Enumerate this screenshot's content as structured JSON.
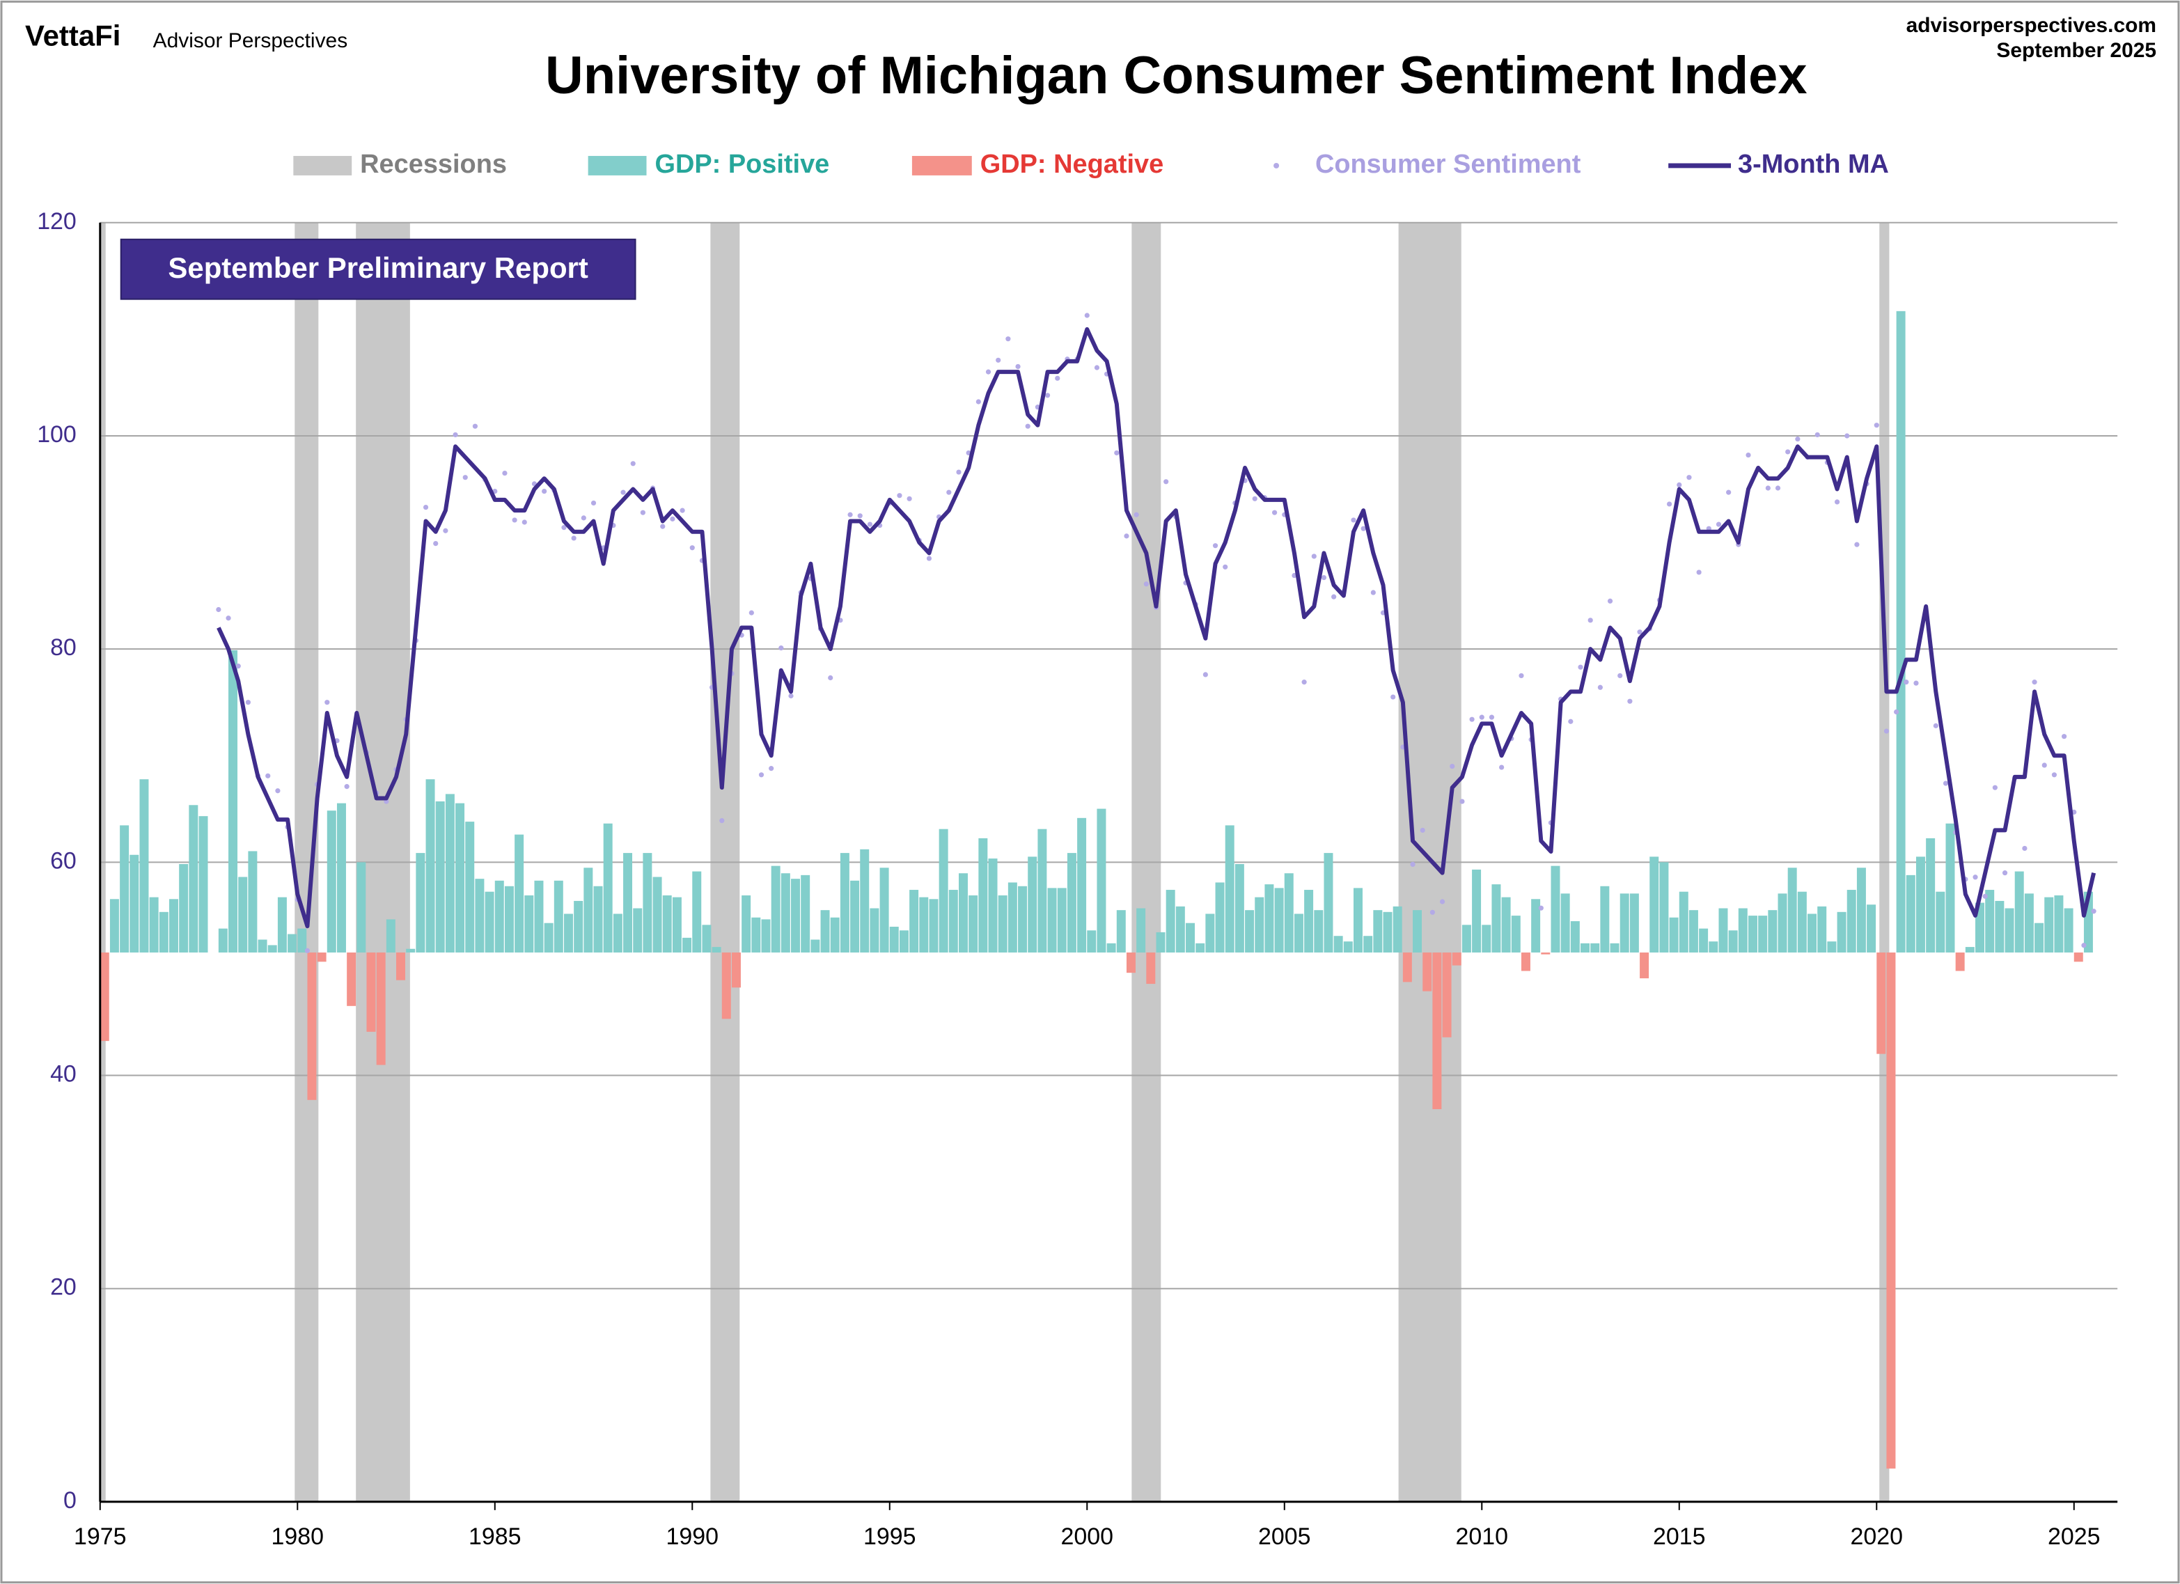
{
  "header": {
    "logo": "VettaFi",
    "brand": "Advisor Perspectives",
    "site": "advisorperspectives.com",
    "date": "September 2025"
  },
  "chart_data": {
    "type": "combo",
    "title": "University of Michigan Consumer Sentiment Index",
    "annotation": "September Preliminary Report",
    "xlim": [
      1975,
      2026.1
    ],
    "xticks": [
      1975,
      1980,
      1985,
      1990,
      1995,
      2000,
      2005,
      2010,
      2015,
      2020,
      2025
    ],
    "ylim": [
      0,
      120
    ],
    "yticks": [
      0,
      20,
      40,
      60,
      80,
      100,
      120
    ],
    "y2lim": [
      -29.8,
      39.6
    ],
    "grid": true,
    "recessions": {
      "name": "Recessions",
      "color": "#c8c8c8",
      "label_color": "#7f7f7f",
      "periods": [
        [
          1975,
          1975.14
        ],
        [
          1979.93,
          1980.53
        ],
        [
          1981.48,
          1982.85
        ],
        [
          1990.46,
          1991.2
        ],
        [
          2001.13,
          2001.87
        ],
        [
          2007.89,
          2009.48
        ],
        [
          2020.07,
          2020.32
        ]
      ]
    },
    "gdp": {
      "name_positive": "GDP: Positive",
      "color_positive": "#82cecb",
      "label_color_positive": "#26a69a",
      "name_negative": "GDP: Negative",
      "color_negative": "#f4928a",
      "label_color_negative": "#e53935",
      "x": [
        1975,
        1975.25,
        1975.5,
        1975.75,
        1976,
        1976.25,
        1976.5,
        1976.75,
        1977,
        1977.25,
        1977.5,
        1977.75,
        1978,
        1978.25,
        1978.5,
        1978.75,
        1979,
        1979.25,
        1979.5,
        1979.75,
        1980,
        1980.25,
        1980.5,
        1980.75,
        1981,
        1981.25,
        1981.5,
        1981.75,
        1982,
        1982.25,
        1982.5,
        1982.75,
        1983,
        1983.25,
        1983.5,
        1983.75,
        1984,
        1984.25,
        1984.5,
        1984.75,
        1985,
        1985.25,
        1985.5,
        1985.75,
        1986,
        1986.25,
        1986.5,
        1986.75,
        1987,
        1987.25,
        1987.5,
        1987.75,
        1988,
        1988.25,
        1988.5,
        1988.75,
        1989,
        1989.25,
        1989.5,
        1989.75,
        1990,
        1990.25,
        1990.5,
        1990.75,
        1991,
        1991.25,
        1991.5,
        1991.75,
        1992,
        1992.25,
        1992.5,
        1992.75,
        1993,
        1993.25,
        1993.5,
        1993.75,
        1994,
        1994.25,
        1994.5,
        1994.75,
        1995,
        1995.25,
        1995.5,
        1995.75,
        1996,
        1996.25,
        1996.5,
        1996.75,
        1997,
        1997.25,
        1997.5,
        1997.75,
        1998,
        1998.25,
        1998.5,
        1998.75,
        1999,
        1999.25,
        1999.5,
        1999.75,
        2000,
        2000.25,
        2000.5,
        2000.75,
        2001,
        2001.25,
        2001.5,
        2001.75,
        2002,
        2002.25,
        2002.5,
        2002.75,
        2003,
        2003.25,
        2003.5,
        2003.75,
        2004,
        2004.25,
        2004.5,
        2004.75,
        2005,
        2005.25,
        2005.5,
        2005.75,
        2006,
        2006.25,
        2006.5,
        2006.75,
        2007,
        2007.25,
        2007.5,
        2007.75,
        2008,
        2008.25,
        2008.5,
        2008.75,
        2009,
        2009.25,
        2009.5,
        2009.75,
        2010,
        2010.25,
        2010.5,
        2010.75,
        2011,
        2011.25,
        2011.5,
        2011.75,
        2012,
        2012.25,
        2012.5,
        2012.75,
        2013,
        2013.25,
        2013.5,
        2013.75,
        2014,
        2014.25,
        2014.5,
        2014.75,
        2015,
        2015.25,
        2015.5,
        2015.75,
        2016,
        2016.25,
        2016.5,
        2016.75,
        2017,
        2017.25,
        2017.5,
        2017.75,
        2018,
        2018.25,
        2018.5,
        2018.75,
        2019,
        2019.25,
        2019.5,
        2019.75,
        2020,
        2020.25,
        2020.5,
        2020.75,
        2021,
        2021.25,
        2021.5,
        2021.75,
        2022,
        2022.25,
        2022.5,
        2022.75,
        2023,
        2023.25,
        2023.5,
        2023.75,
        2024,
        2024.25,
        2024.5,
        2024.75,
        2025,
        2025.25
      ],
      "values": [
        -4.8,
        2.9,
        6.9,
        5.3,
        9.4,
        3.0,
        2.2,
        2.9,
        4.8,
        8.0,
        7.4,
        0.0,
        1.3,
        16.4,
        4.1,
        5.5,
        0.7,
        0.4,
        3.0,
        1.0,
        1.3,
        -8.0,
        -0.5,
        7.7,
        8.1,
        -2.9,
        4.9,
        -4.3,
        -6.1,
        1.8,
        -1.5,
        0.2,
        5.4,
        9.4,
        8.2,
        8.6,
        8.1,
        7.1,
        4.0,
        3.3,
        3.9,
        3.6,
        6.4,
        3.1,
        3.9,
        1.6,
        3.9,
        2.1,
        2.8,
        4.6,
        3.6,
        7.0,
        2.1,
        5.4,
        2.4,
        5.4,
        4.1,
        3.1,
        3.0,
        0.8,
        4.4,
        1.5,
        0.3,
        -3.6,
        -1.9,
        3.1,
        1.9,
        1.8,
        4.7,
        4.3,
        4.0,
        4.2,
        0.7,
        2.3,
        1.9,
        5.4,
        3.9,
        5.6,
        2.4,
        4.6,
        1.4,
        1.2,
        3.4,
        3.0,
        2.9,
        6.7,
        3.4,
        4.3,
        3.1,
        6.2,
        5.1,
        3.1,
        3.8,
        3.6,
        5.2,
        6.7,
        3.5,
        3.5,
        5.4,
        7.3,
        1.2,
        7.8,
        0.5,
        2.3,
        -1.1,
        2.4,
        -1.7,
        1.1,
        3.4,
        2.5,
        1.6,
        0.5,
        2.1,
        3.8,
        6.9,
        4.8,
        2.3,
        3.0,
        3.7,
        3.5,
        4.3,
        2.1,
        3.4,
        2.3,
        5.4,
        0.9,
        0.6,
        3.5,
        0.9,
        2.3,
        2.2,
        2.5,
        -1.6,
        2.3,
        -2.1,
        -8.5,
        -4.6,
        -0.7,
        1.5,
        4.5,
        1.5,
        3.7,
        3.0,
        2.0,
        -1.0,
        2.9,
        -0.1,
        4.7,
        3.2,
        1.7,
        0.5,
        0.5,
        3.6,
        0.5,
        3.2,
        3.2,
        -1.4,
        5.2,
        4.9,
        1.9,
        3.3,
        2.3,
        1.3,
        0.6,
        2.4,
        1.2,
        2.4,
        2.0,
        2.0,
        2.3,
        3.2,
        4.6,
        3.3,
        2.1,
        2.5,
        0.6,
        2.2,
        3.4,
        4.6,
        2.6,
        -5.5,
        -28.0,
        34.8,
        4.2,
        5.2,
        6.2,
        3.3,
        7.0,
        -1.0,
        0.3,
        2.7,
        3.4,
        2.8,
        2.4,
        4.4,
        3.2,
        1.6,
        3.0,
        3.1,
        2.4,
        -0.5,
        3.3
      ]
    },
    "x": [
      1978,
      1978.25,
      1978.5,
      1978.75,
      1979,
      1979.25,
      1979.5,
      1979.75,
      1980,
      1980.25,
      1980.5,
      1980.75,
      1981,
      1981.25,
      1981.5,
      1981.75,
      1982,
      1982.25,
      1982.5,
      1982.75,
      1983,
      1983.25,
      1983.5,
      1983.75,
      1984,
      1984.25,
      1984.5,
      1984.75,
      1985,
      1985.25,
      1985.5,
      1985.75,
      1986,
      1986.25,
      1986.5,
      1986.75,
      1987,
      1987.25,
      1987.5,
      1987.75,
      1988,
      1988.25,
      1988.5,
      1988.75,
      1989,
      1989.25,
      1989.5,
      1989.75,
      1990,
      1990.25,
      1990.5,
      1990.75,
      1991,
      1991.25,
      1991.5,
      1991.75,
      1992,
      1992.25,
      1992.5,
      1992.75,
      1993,
      1993.25,
      1993.5,
      1993.75,
      1994,
      1994.25,
      1994.5,
      1994.75,
      1995,
      1995.25,
      1995.5,
      1995.75,
      1996,
      1996.25,
      1996.5,
      1996.75,
      1997,
      1997.25,
      1997.5,
      1997.75,
      1998,
      1998.25,
      1998.5,
      1998.75,
      1999,
      1999.25,
      1999.5,
      1999.75,
      2000,
      2000.25,
      2000.5,
      2000.75,
      2001,
      2001.25,
      2001.5,
      2001.75,
      2002,
      2002.25,
      2002.5,
      2002.75,
      2003,
      2003.25,
      2003.5,
      2003.75,
      2004,
      2004.25,
      2004.5,
      2004.75,
      2005,
      2005.25,
      2005.5,
      2005.75,
      2006,
      2006.25,
      2006.5,
      2006.75,
      2007,
      2007.25,
      2007.5,
      2007.75,
      2008,
      2008.25,
      2008.5,
      2008.75,
      2009,
      2009.25,
      2009.5,
      2009.75,
      2010,
      2010.25,
      2010.5,
      2010.75,
      2011,
      2011.25,
      2011.5,
      2011.75,
      2012,
      2012.25,
      2012.5,
      2012.75,
      2013,
      2013.25,
      2013.5,
      2013.75,
      2014,
      2014.25,
      2014.5,
      2014.75,
      2015,
      2015.25,
      2015.5,
      2015.75,
      2016,
      2016.25,
      2016.5,
      2016.75,
      2017,
      2017.25,
      2017.5,
      2017.75,
      2018,
      2018.25,
      2018.5,
      2018.75,
      2019,
      2019.25,
      2019.5,
      2019.75,
      2020,
      2020.25,
      2020.5,
      2020.75,
      2021,
      2021.25,
      2021.5,
      2021.75,
      2022,
      2022.25,
      2022.5,
      2022.75,
      2023,
      2023.25,
      2023.5,
      2023.75,
      2024,
      2024.25,
      2024.5,
      2024.75,
      2025,
      2025.25,
      2025.5
    ],
    "series": [
      {
        "name": "Consumer Sentiment",
        "color": "#b3aae6",
        "label_color": "#a99fe0",
        "style": "dots",
        "values": [
          83.7,
          82.9,
          78.4,
          75.0,
          68.1,
          68.1,
          66.7,
          63.3,
          56.5,
          51.7,
          67.3,
          75.0,
          71.4,
          67.1,
          73.1,
          70.3,
          66.5,
          65.7,
          68.7,
          73.4,
          80.8,
          93.3,
          89.9,
          91.1,
          100.1,
          96.1,
          100.9,
          95.9,
          94.8,
          96.5,
          92.1,
          91.9,
          95.5,
          94.8,
          94.9,
          91.4,
          90.4,
          92.3,
          93.7,
          89.5,
          91.6,
          94.7,
          97.4,
          92.8,
          95.1,
          91.5,
          92.2,
          93.0,
          89.5,
          88.3,
          76.4,
          63.9,
          77.7,
          81.3,
          83.4,
          68.2,
          68.8,
          80.1,
          75.6,
          85.3,
          86.6,
          81.9,
          77.3,
          82.7,
          92.6,
          92.5,
          91.7,
          91.6,
          93.7,
          94.4,
          94.1,
          90.2,
          88.5,
          92.4,
          94.7,
          96.6,
          98.4,
          103.2,
          106.0,
          107.1,
          109.1,
          106.5,
          100.9,
          102.7,
          103.8,
          105.4,
          107.2,
          107.2,
          111.3,
          106.4,
          105.8,
          98.4,
          90.6,
          92.6,
          86.1,
          83.9,
          95.7,
          92.4,
          86.2,
          84.2,
          77.6,
          89.7,
          87.7,
          93.7,
          95.8,
          94.1,
          94.2,
          92.8,
          92.6,
          86.9,
          76.9,
          88.7,
          86.7,
          84.9,
          85.4,
          92.1,
          91.3,
          85.3,
          83.4,
          75.5,
          70.8,
          59.8,
          63.0,
          55.3,
          56.3,
          69.0,
          65.7,
          73.4,
          73.6,
          73.6,
          68.9,
          71.6,
          77.5,
          71.5,
          55.7,
          63.7,
          75.3,
          73.2,
          78.3,
          82.7,
          76.4,
          84.5,
          77.5,
          75.1,
          81.6,
          81.9,
          84.6,
          93.6,
          95.4,
          96.1,
          87.2,
          91.3,
          91.7,
          94.7,
          89.8,
          98.2,
          96.9,
          95.1,
          95.1,
          98.5,
          99.7,
          98.0,
          100.1,
          97.5,
          93.8,
          100.0,
          89.8,
          95.5,
          101.0,
          72.3,
          74.1,
          76.9,
          76.8,
          82.9,
          72.8,
          67.4,
          62.8,
          58.4,
          58.6,
          56.8,
          67.0,
          59.0,
          67.9,
          61.3,
          76.9,
          69.1,
          68.2,
          71.8,
          64.7,
          52.2,
          55.4
        ]
      },
      {
        "name": "3-Month MA",
        "color": "#3f2d8c",
        "label_color": "#3f2d8c",
        "style": "line",
        "values": [
          82,
          80,
          77,
          72,
          68,
          66,
          64,
          64,
          57,
          54,
          66,
          74,
          70,
          68,
          74,
          70,
          66,
          66,
          68,
          72,
          82,
          92,
          91,
          93,
          99,
          98,
          97,
          96,
          94,
          94,
          93,
          93,
          95,
          96,
          95,
          92,
          91,
          91,
          92,
          88,
          93,
          94,
          95,
          94,
          95,
          92,
          93,
          92,
          91,
          91,
          80,
          67,
          80,
          82,
          82,
          72,
          70,
          78,
          76,
          85,
          88,
          82,
          80,
          84,
          92,
          92,
          91,
          92,
          94,
          93,
          92,
          90,
          89,
          92,
          93,
          95,
          97,
          101,
          104,
          106,
          106,
          106,
          102,
          101,
          106,
          106,
          107,
          107,
          110,
          108,
          107,
          103,
          93,
          91,
          89,
          84,
          92,
          93,
          87,
          84,
          81,
          88,
          90,
          93,
          97,
          95,
          94,
          94,
          94,
          89,
          83,
          84,
          89,
          86,
          85,
          91,
          93,
          89,
          86,
          78,
          75,
          62,
          61,
          60,
          59,
          67,
          68,
          71,
          73,
          73,
          70,
          72,
          74,
          73,
          62,
          61,
          75,
          76,
          76,
          80,
          79,
          82,
          81,
          77,
          81,
          82,
          84,
          90,
          95,
          94,
          91,
          91,
          91,
          92,
          90,
          95,
          97,
          96,
          96,
          97,
          99,
          98,
          98,
          98,
          95,
          98,
          92,
          96,
          99,
          76,
          76,
          79,
          79,
          84,
          76,
          70,
          64,
          57,
          55,
          59,
          63,
          63,
          68,
          68,
          76,
          72,
          70,
          70,
          62,
          55,
          59
        ]
      }
    ]
  }
}
